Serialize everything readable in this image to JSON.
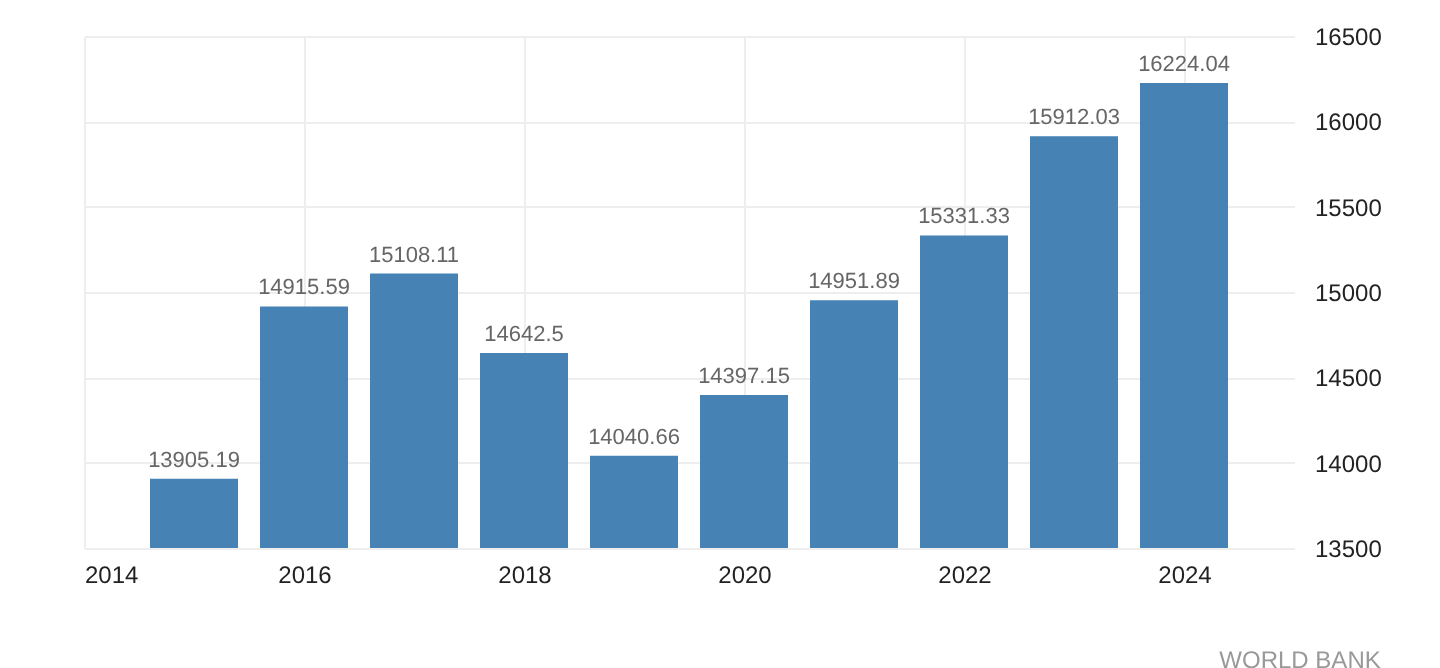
{
  "chart_data": {
    "type": "bar",
    "x": [
      2015,
      2016,
      2017,
      2018,
      2019,
      2020,
      2021,
      2022,
      2023,
      2024
    ],
    "values": [
      13905.19,
      14915.59,
      15108.11,
      14642.5,
      14040.66,
      14397.15,
      14951.89,
      15331.33,
      15912.03,
      16224.04
    ],
    "color": "#4682b4",
    "xlim": [
      2014,
      2025
    ],
    "xticks": [
      2014,
      2016,
      2018,
      2020,
      2022,
      2024
    ],
    "ylim": [
      13500,
      16500
    ],
    "yticks": [
      13500,
      14000,
      14500,
      15000,
      15500,
      16000,
      16500
    ],
    "grid": true,
    "data_labels": true,
    "annotations": [
      "WORLD BANK"
    ]
  }
}
